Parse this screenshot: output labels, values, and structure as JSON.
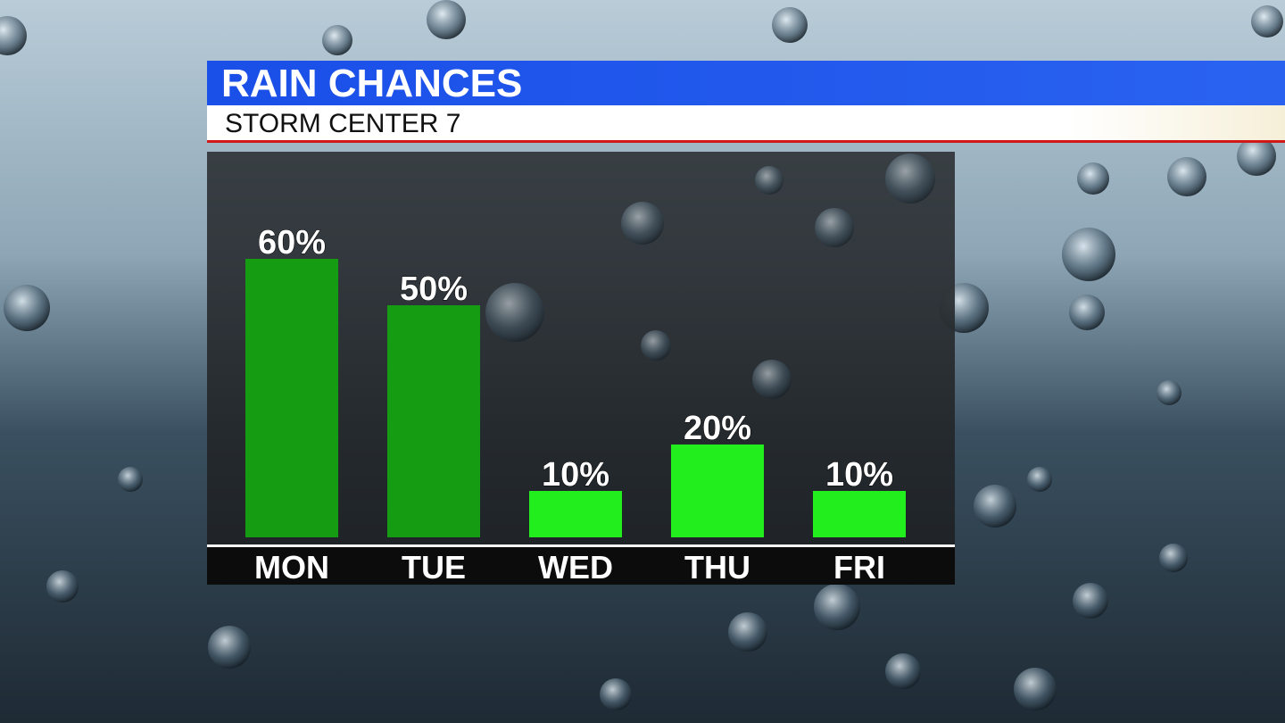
{
  "chart_data": {
    "type": "bar",
    "title": "RAIN CHANCES",
    "subtitle": "STORM CENTER 7",
    "categories": [
      "MON",
      "TUE",
      "WED",
      "THU",
      "FRI"
    ],
    "values": [
      60,
      50,
      10,
      20,
      10
    ],
    "value_labels": [
      "60%",
      "50%",
      "10%",
      "20%",
      "10%"
    ],
    "colors": [
      "#169c12",
      "#169c12",
      "#22ee1e",
      "#22ee1e",
      "#22ee1e"
    ]
  }
}
